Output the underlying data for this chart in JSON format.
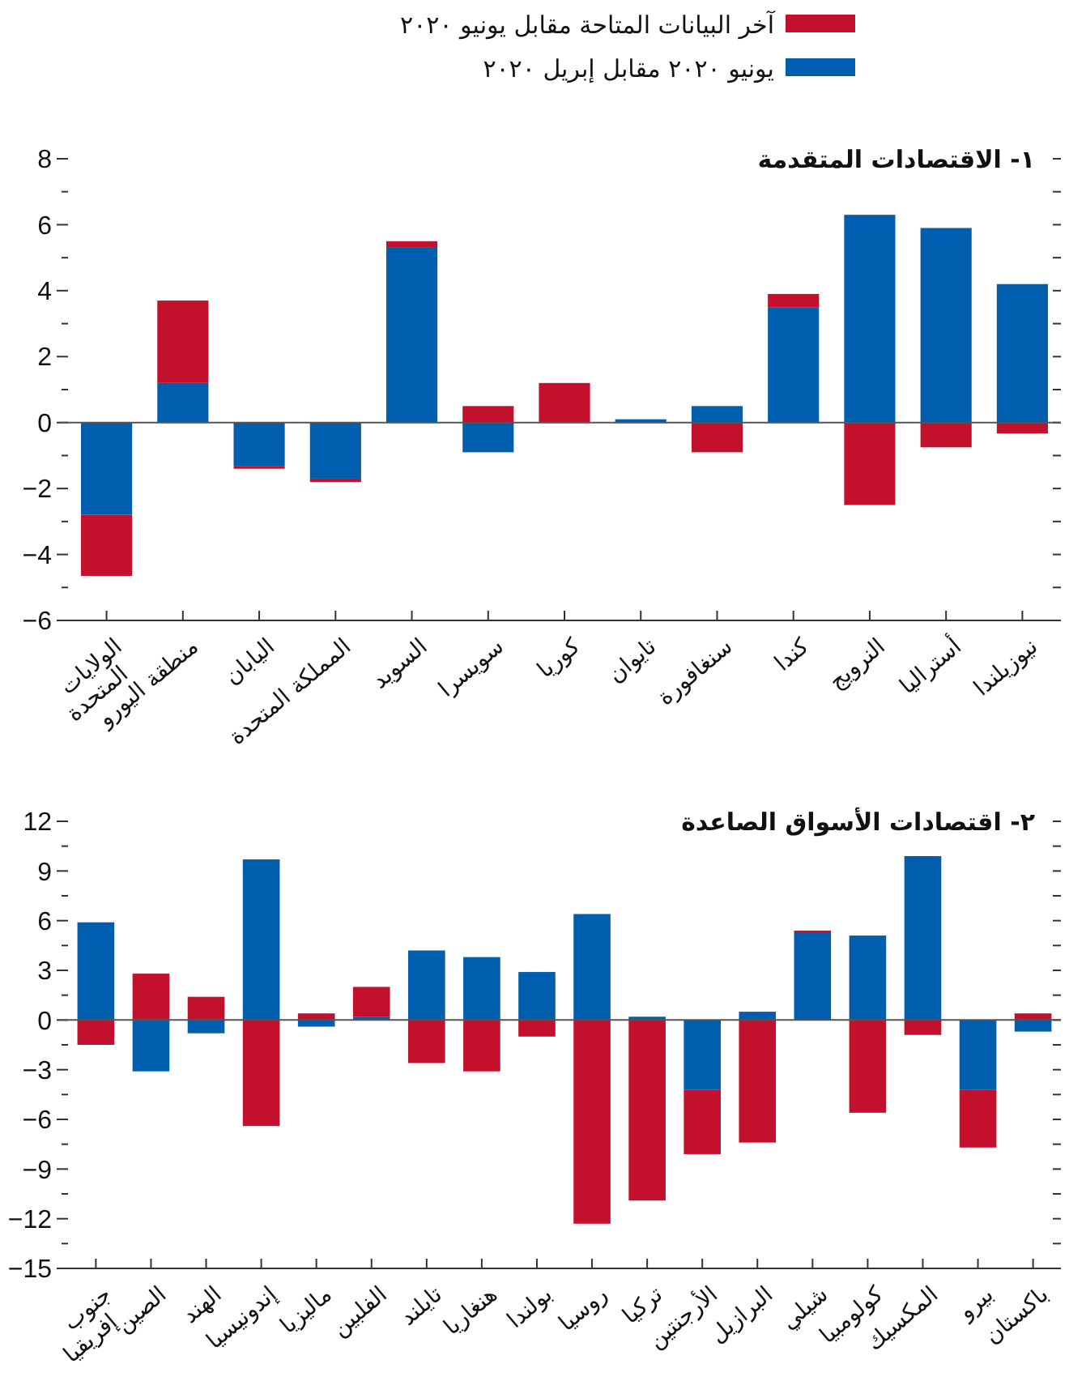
{
  "chart_data": [
    {
      "type": "bar",
      "stacked": true,
      "title": "١- الاقتصادات المتقدمة",
      "legend": "top",
      "categories": [
        "الولايات\nالمتحدة",
        "منطقة اليورو",
        "اليابان",
        "المملكة المتحدة",
        "السويد",
        "سويسرا",
        "كوريا",
        "تايوان",
        "سنغافورة",
        "كندا",
        "النرويج",
        "أستراليا",
        "نيوزيلندا"
      ],
      "series": [
        {
          "name": "يونيو ٢٠٢٠ مقابل إبريل ٢٠٢٠",
          "color": "#005eaf",
          "values": [
            -2.8,
            1.2,
            -1.33,
            -1.7,
            5.3,
            -0.9,
            0,
            0.1,
            0.5,
            3.5,
            6.3,
            5.9,
            4.2
          ]
        },
        {
          "name": "آخر البيانات المتاحة مقابل يونيو ٢٠٢٠",
          "color": "#c3112d",
          "values": [
            -1.85,
            2.5,
            -0.07,
            -0.1,
            0.2,
            0.5,
            1.2,
            0,
            -0.9,
            0.4,
            -2.5,
            -0.75,
            -0.33
          ]
        }
      ],
      "ylim": [
        -6,
        8
      ],
      "yticks": [
        -6,
        {
          "value": -5,
          "label": null
        },
        -4,
        {
          "value": -3,
          "label": null
        },
        -2,
        {
          "value": -1,
          "label": null
        },
        0,
        {
          "value": 1,
          "label": null
        },
        2,
        {
          "value": 3,
          "label": null
        },
        4,
        {
          "value": 5,
          "label": null
        },
        6,
        {
          "value": 7,
          "label": null
        },
        8
      ]
    },
    {
      "type": "bar",
      "stacked": true,
      "title": "٢- اقتصادات الأسواق الصاعدة",
      "categories": [
        "جنوب\nإفريقيا",
        "الصين",
        "الهند",
        "إندونيسيا",
        "ماليزيا",
        "الفلبين",
        "تايلند",
        "هنغاريا",
        "بولندا",
        "روسيا",
        "تركيا",
        "الأرجنتين",
        "البرازيل",
        "شيلي",
        "كولومبيا",
        "المكسيك",
        "بيرو",
        "باكستان"
      ],
      "series": [
        {
          "color": "#005eaf",
          "values": [
            5.9,
            -3.1,
            -0.8,
            9.7,
            -0.4,
            0.2,
            4.2,
            3.8,
            2.9,
            6.4,
            0.2,
            -4.2,
            0.5,
            5.3,
            5.1,
            9.9,
            -4.2,
            -0.7
          ]
        },
        {
          "color": "#c3112d",
          "values": [
            -1.5,
            2.8,
            1.4,
            -6.4,
            0.4,
            1.8,
            -2.6,
            -3.1,
            -1,
            -12.3,
            -10.9,
            -3.9,
            -7.4,
            0.1,
            -5.6,
            -0.9,
            -3.5,
            0.4
          ]
        }
      ],
      "ylim": [
        -15,
        12
      ],
      "yticks": [
        -15,
        {
          "value": -13.5,
          "label": null
        },
        -12,
        {
          "value": -10.5,
          "label": null
        },
        -9,
        {
          "value": -7.5,
          "label": null
        },
        -6,
        {
          "value": -4.5,
          "label": null
        },
        -3,
        {
          "value": -1.5,
          "label": null
        },
        0,
        {
          "value": 1.5,
          "label": null
        },
        3,
        {
          "value": 4.5,
          "label": null
        },
        6,
        {
          "value": 7.5,
          "label": null
        },
        9,
        {
          "value": 10.5,
          "label": null
        },
        12
      ]
    }
  ]
}
